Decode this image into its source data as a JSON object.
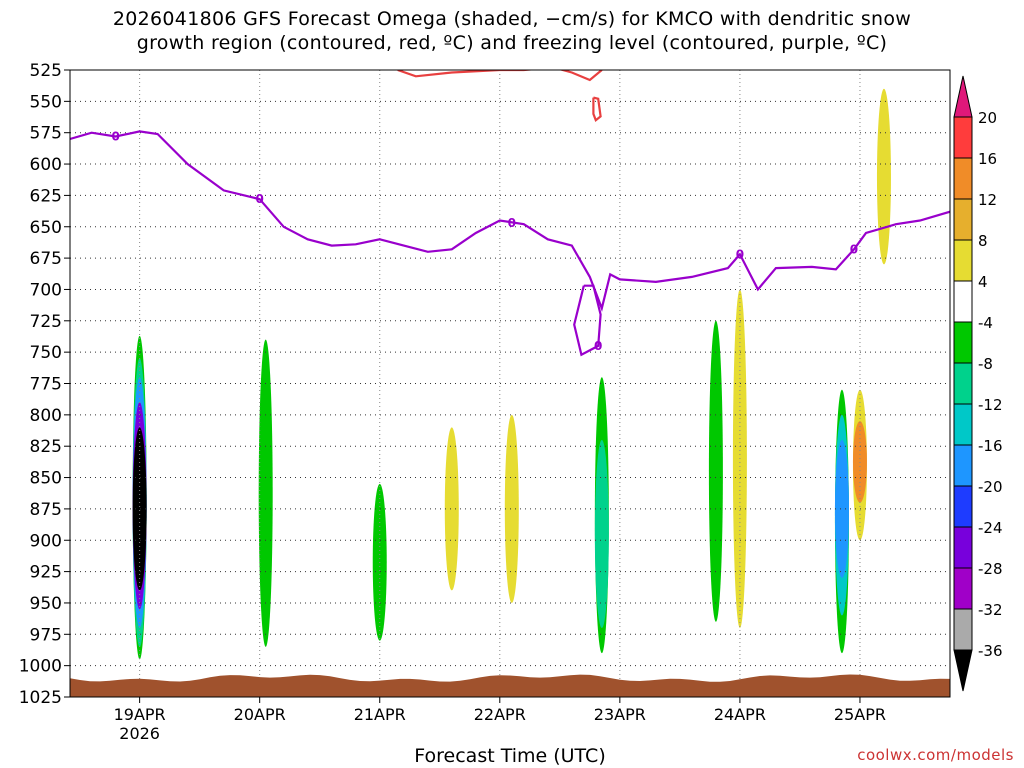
{
  "title_line1": "2026041806 GFS Forecast Omega (shaded, −cm/s) for KMCO with dendritic snow",
  "title_line2": "growth region (contoured, red, ºC) and freezing level (contoured, purple, ºC)",
  "xlabel": "Forecast Time (UTC)",
  "credit": "coolwx.com/models",
  "chart_data": {
    "type": "heatmap",
    "y_axis": {
      "label": "",
      "ticks": [
        525,
        550,
        575,
        600,
        625,
        650,
        675,
        700,
        725,
        750,
        775,
        800,
        825,
        850,
        875,
        900,
        925,
        950,
        975,
        1000,
        1025
      ],
      "range": [
        525,
        1025
      ],
      "units": "hPa",
      "orientation": "pressure decreasing upward"
    },
    "x_axis": {
      "label": "Forecast Time (UTC)",
      "ticks": [
        "19APR",
        "20APR",
        "21APR",
        "22APR",
        "23APR",
        "24APR",
        "25APR"
      ],
      "year_label": "2026",
      "range_days": [
        18.42,
        25.75
      ]
    },
    "grid": true,
    "colorbar": {
      "labels": [
        20,
        16,
        12,
        8,
        4,
        -4,
        -8,
        -12,
        -16,
        -20,
        -24,
        -28,
        -32,
        -36
      ],
      "colors": {
        "gt20": "#e0187a",
        "16_20": "#ff3c3c",
        "12_16": "#f08c28",
        "8_12": "#e6af2d",
        "4_8": "#e6dc32",
        "m4_4": "#ffffff",
        "m8_m4": "#00c800",
        "m12_m8": "#00d28c",
        "m16_m12": "#00c8c8",
        "m20_m16": "#1e96ff",
        "m24_m20": "#1e3cff",
        "m28_m24": "#7800dc",
        "m32_m28": "#a000c8",
        "m36_m32": "#aaaaaa",
        "lt36": "#000000"
      }
    },
    "freezing_level": {
      "color": "#9900cc",
      "label": "0",
      "points": [
        [
          18.42,
          580
        ],
        [
          18.6,
          575
        ],
        [
          18.8,
          578
        ],
        [
          19.0,
          574
        ],
        [
          19.15,
          576
        ],
        [
          19.4,
          600
        ],
        [
          19.7,
          621
        ],
        [
          20.0,
          628
        ],
        [
          20.2,
          650
        ],
        [
          20.4,
          660
        ],
        [
          20.6,
          665
        ],
        [
          20.8,
          664
        ],
        [
          21.0,
          660
        ],
        [
          21.2,
          665
        ],
        [
          21.4,
          670
        ],
        [
          21.6,
          668
        ],
        [
          21.8,
          655
        ],
        [
          22.0,
          645
        ],
        [
          22.2,
          648
        ],
        [
          22.4,
          660
        ],
        [
          22.6,
          665
        ],
        [
          22.75,
          690
        ],
        [
          22.85,
          715
        ],
        [
          22.92,
          688
        ],
        [
          23.0,
          692
        ],
        [
          23.3,
          694
        ],
        [
          23.6,
          690
        ],
        [
          23.9,
          683
        ],
        [
          24.0,
          672
        ],
        [
          24.15,
          700
        ],
        [
          24.3,
          683
        ],
        [
          24.6,
          682
        ],
        [
          24.8,
          684
        ],
        [
          24.95,
          668
        ],
        [
          25.05,
          655
        ],
        [
          25.3,
          648
        ],
        [
          25.5,
          645
        ],
        [
          25.75,
          638
        ]
      ],
      "loop_23apr": [
        [
          22.7,
          697
        ],
        [
          22.62,
          728
        ],
        [
          22.68,
          752
        ],
        [
          22.82,
          745
        ],
        [
          22.84,
          720
        ],
        [
          22.78,
          697
        ],
        [
          22.7,
          697
        ]
      ]
    },
    "dgz_contour": {
      "color": "#e84040",
      "points": [
        [
          21.15,
          525
        ],
        [
          21.3,
          530
        ],
        [
          21.6,
          527
        ],
        [
          22.0,
          525
        ],
        [
          22.2,
          525
        ],
        [
          22.45,
          523
        ],
        [
          22.6,
          527
        ],
        [
          22.75,
          533
        ],
        [
          22.85,
          525
        ]
      ],
      "closed_23apr": [
        [
          22.78,
          547
        ],
        [
          22.82,
          548
        ],
        [
          22.84,
          562
        ],
        [
          22.8,
          565
        ],
        [
          22.78,
          560
        ],
        [
          22.78,
          547
        ]
      ]
    },
    "shaded_omega": [
      {
        "x": 19.0,
        "p_top": 737,
        "p_bottom": 995,
        "band": "m8_m4"
      },
      {
        "x": 19.0,
        "p_top": 755,
        "p_bottom": 985,
        "band": "m12_m8"
      },
      {
        "x": 19.0,
        "p_top": 770,
        "p_bottom": 970,
        "band": "m20_m16"
      },
      {
        "x": 19.0,
        "p_top": 790,
        "p_bottom": 955,
        "band": "m28_m24"
      },
      {
        "x": 19.0,
        "p_top": 810,
        "p_bottom": 940,
        "band": "lt36"
      },
      {
        "x": 20.05,
        "p_top": 740,
        "p_bottom": 985,
        "band": "m8_m4"
      },
      {
        "x": 21.0,
        "p_top": 855,
        "p_bottom": 980,
        "band": "m8_m4"
      },
      {
        "x": 21.6,
        "p_top": 810,
        "p_bottom": 940,
        "band": "4_8"
      },
      {
        "x": 22.1,
        "p_top": 800,
        "p_bottom": 950,
        "band": "4_8"
      },
      {
        "x": 22.85,
        "p_top": 770,
        "p_bottom": 990,
        "band": "m8_m4"
      },
      {
        "x": 22.85,
        "p_top": 820,
        "p_bottom": 970,
        "band": "m12_m8"
      },
      {
        "x": 23.8,
        "p_top": 725,
        "p_bottom": 965,
        "band": "m8_m4"
      },
      {
        "x": 24.0,
        "p_top": 700,
        "p_bottom": 970,
        "band": "4_8"
      },
      {
        "x": 24.85,
        "p_top": 780,
        "p_bottom": 990,
        "band": "m8_m4"
      },
      {
        "x": 24.85,
        "p_top": 800,
        "p_bottom": 960,
        "band": "m16_m12"
      },
      {
        "x": 24.85,
        "p_top": 820,
        "p_bottom": 930,
        "band": "m20_m16"
      },
      {
        "x": 25.0,
        "p_top": 780,
        "p_bottom": 900,
        "band": "4_8"
      },
      {
        "x": 25.0,
        "p_top": 805,
        "p_bottom": 870,
        "band": "12_16"
      },
      {
        "x": 25.2,
        "p_top": 540,
        "p_bottom": 680,
        "band": "4_8"
      }
    ],
    "terrain": {
      "color": "#a0522d",
      "surface_p": 1010
    }
  }
}
